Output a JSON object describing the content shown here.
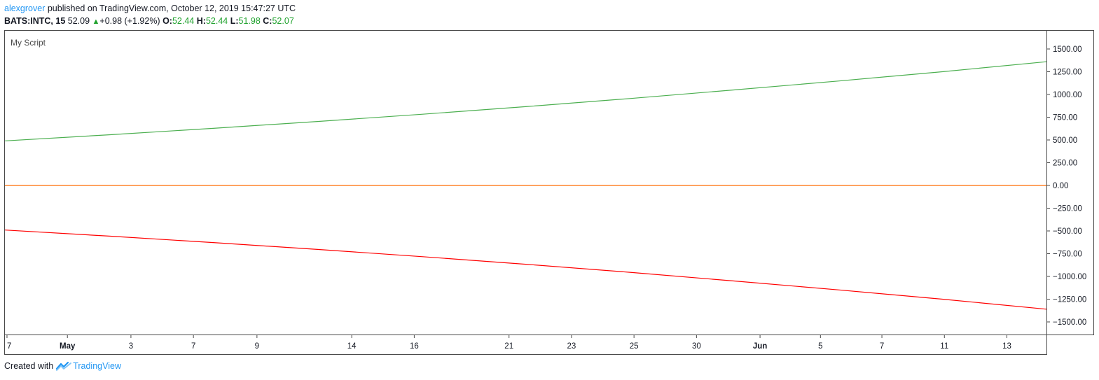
{
  "header": {
    "author": "alexgrover",
    "published_text": " published on TradingView.com, October 12, 2019 15:47:27 UTC",
    "symbol": "BATS:INTC, 15",
    "price": "52.09",
    "change": "+0.98 (+1.92%)",
    "open_label": "O:",
    "open": "52.44",
    "high_label": "H:",
    "high": "52.44",
    "low_label": "L:",
    "low": "51.98",
    "close_label": "C:",
    "close": "52.07"
  },
  "footer": {
    "created_with": "Created with",
    "brand": "TradingView"
  },
  "colors": {
    "upper_line": "#4caf50",
    "zero_line": "#ff6a00",
    "lower_line": "#ff0000",
    "accent": "#2196f3",
    "positive": "#1ea12c"
  },
  "chart_data": {
    "type": "line",
    "title": "My Script",
    "xlabel": "",
    "ylabel": "",
    "ylim": [
      -1650,
      1650
    ],
    "y_ticks": [
      "1500.00",
      "1250.00",
      "1000.00",
      "750.00",
      "500.00",
      "250.00",
      "0.00",
      "−250.00",
      "−500.00",
      "−750.00",
      "−1000.00",
      "−1250.00",
      "−1500.00"
    ],
    "y_tick_values": [
      1500,
      1250,
      1000,
      750,
      500,
      250,
      0,
      -250,
      -500,
      -750,
      -1000,
      -1250,
      -1500
    ],
    "x_ticks": [
      "7",
      "May",
      "3",
      "7",
      "9",
      "14",
      "16",
      "21",
      "23",
      "25",
      "30",
      "Jun",
      "5",
      "7",
      "11",
      "13"
    ],
    "x_ticks_bold": [
      "May",
      "Jun"
    ],
    "x_range": [
      0,
      100
    ],
    "x_tick_positions": [
      0.2,
      6,
      12.1,
      18.1,
      24.2,
      33.3,
      39.3,
      48.4,
      54.4,
      60.4,
      66.4,
      72.5,
      78.3,
      84.2,
      90.2,
      96.2
    ],
    "series": [
      {
        "color": "#4caf50",
        "x": [
          0,
          10,
          20,
          30,
          40,
          50,
          60,
          70,
          80,
          90,
          100
        ],
        "y": [
          490,
          557,
          628,
          703,
          782,
          866,
          955,
          1050,
          1148,
          1250,
          1360
        ]
      },
      {
        "color": "#ff6a00",
        "x": [
          0,
          100
        ],
        "y": [
          0,
          0
        ]
      },
      {
        "color": "#ff0000",
        "x": [
          0,
          10,
          20,
          30,
          40,
          50,
          60,
          70,
          80,
          90,
          100
        ],
        "y": [
          -490,
          -557,
          -628,
          -703,
          -782,
          -866,
          -955,
          -1050,
          -1148,
          -1250,
          -1360
        ]
      }
    ]
  }
}
